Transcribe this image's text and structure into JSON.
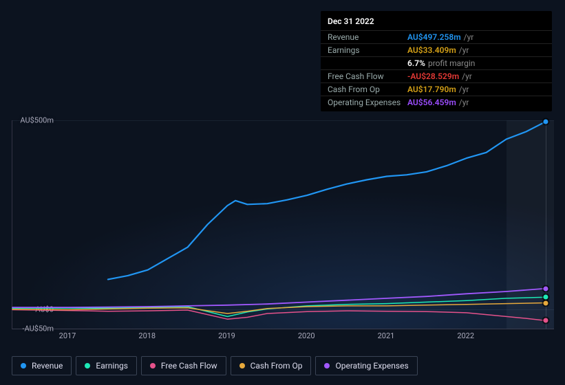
{
  "tooltip": {
    "date": "Dec 31 2022",
    "rows": [
      {
        "label": "Revenue",
        "value": "AU$497.258m",
        "color": "#2196f3",
        "suffix": "/yr"
      },
      {
        "label": "Earnings",
        "value": "AU$33.409m",
        "color": "#d4a017",
        "suffix": "/yr"
      },
      {
        "label": "",
        "value": "6.7%",
        "color": "#ffffff",
        "suffix": "profit margin"
      },
      {
        "label": "Free Cash Flow",
        "value": "-AU$28.529m",
        "color": "#e53935",
        "suffix": "/yr"
      },
      {
        "label": "Cash From Op",
        "value": "AU$17.790m",
        "color": "#d4a017",
        "suffix": "/yr"
      },
      {
        "label": "Operating Expenses",
        "value": "AU$56.459m",
        "color": "#9c4dff",
        "suffix": "/yr"
      }
    ]
  },
  "chart": {
    "type": "line",
    "background_color": "#0c131f",
    "grid_color": "rgba(100,120,150,0.15)",
    "x": {
      "min": 2016.3,
      "max": 2023.1,
      "ticks": [
        2017,
        2018,
        2019,
        2020,
        2021,
        2022
      ],
      "marker_at": 2023.0
    },
    "y": {
      "min": -50,
      "max": 500,
      "ticks": [
        {
          "v": 500,
          "label": "AU$500m"
        },
        {
          "v": 0,
          "label": "AU$0"
        },
        {
          "v": -50,
          "label": "-AU$50m"
        }
      ]
    },
    "future_from": 2022.5,
    "series": [
      {
        "name": "Revenue",
        "color": "#2196f3",
        "width": 2.2,
        "points": [
          [
            2017.5,
            80
          ],
          [
            2017.75,
            90
          ],
          [
            2018.0,
            105
          ],
          [
            2018.25,
            135
          ],
          [
            2018.5,
            165
          ],
          [
            2018.75,
            225
          ],
          [
            2019.0,
            275
          ],
          [
            2019.1,
            288
          ],
          [
            2019.25,
            278
          ],
          [
            2019.5,
            280
          ],
          [
            2019.75,
            290
          ],
          [
            2020.0,
            302
          ],
          [
            2020.25,
            318
          ],
          [
            2020.5,
            332
          ],
          [
            2020.75,
            343
          ],
          [
            2021.0,
            352
          ],
          [
            2021.25,
            356
          ],
          [
            2021.5,
            364
          ],
          [
            2021.75,
            380
          ],
          [
            2022.0,
            400
          ],
          [
            2022.25,
            415
          ],
          [
            2022.5,
            450
          ],
          [
            2022.75,
            470
          ],
          [
            2023.0,
            497
          ]
        ]
      },
      {
        "name": "Earnings",
        "color": "#1de9b6",
        "width": 1.5,
        "points": [
          [
            2016.3,
            4
          ],
          [
            2017.0,
            4
          ],
          [
            2017.5,
            4
          ],
          [
            2018.0,
            6
          ],
          [
            2018.5,
            8
          ],
          [
            2019.0,
            -18
          ],
          [
            2019.25,
            -6
          ],
          [
            2019.5,
            2
          ],
          [
            2020.0,
            10
          ],
          [
            2020.5,
            14
          ],
          [
            2021.0,
            16
          ],
          [
            2021.5,
            20
          ],
          [
            2022.0,
            24
          ],
          [
            2022.5,
            30
          ],
          [
            2023.0,
            33
          ]
        ]
      },
      {
        "name": "Free Cash Flow",
        "color": "#e5528b",
        "width": 1.5,
        "points": [
          [
            2016.3,
            0
          ],
          [
            2017.0,
            -2
          ],
          [
            2017.5,
            -4
          ],
          [
            2018.0,
            -3
          ],
          [
            2018.5,
            -1
          ],
          [
            2019.0,
            -25
          ],
          [
            2019.25,
            -20
          ],
          [
            2019.5,
            -10
          ],
          [
            2020.0,
            -5
          ],
          [
            2020.5,
            -3
          ],
          [
            2021.0,
            -4
          ],
          [
            2021.5,
            -5
          ],
          [
            2022.0,
            -8
          ],
          [
            2022.5,
            -18
          ],
          [
            2022.75,
            -23
          ],
          [
            2023.0,
            -29
          ]
        ]
      },
      {
        "name": "Cash From Op",
        "color": "#e7a93c",
        "width": 1.5,
        "points": [
          [
            2016.3,
            1
          ],
          [
            2017.0,
            0
          ],
          [
            2017.5,
            2
          ],
          [
            2018.0,
            4
          ],
          [
            2018.5,
            5
          ],
          [
            2019.0,
            -10
          ],
          [
            2019.25,
            -4
          ],
          [
            2019.5,
            3
          ],
          [
            2020.0,
            8
          ],
          [
            2020.5,
            10
          ],
          [
            2021.0,
            10
          ],
          [
            2021.5,
            12
          ],
          [
            2022.0,
            14
          ],
          [
            2022.5,
            16
          ],
          [
            2023.0,
            18
          ]
        ]
      },
      {
        "name": "Operating Expenses",
        "color": "#a259ff",
        "width": 1.8,
        "points": [
          [
            2016.3,
            6
          ],
          [
            2017.0,
            6
          ],
          [
            2017.5,
            7
          ],
          [
            2018.0,
            8
          ],
          [
            2018.5,
            10
          ],
          [
            2019.0,
            12
          ],
          [
            2019.5,
            15
          ],
          [
            2020.0,
            20
          ],
          [
            2020.5,
            25
          ],
          [
            2021.0,
            30
          ],
          [
            2021.5,
            35
          ],
          [
            2022.0,
            42
          ],
          [
            2022.5,
            48
          ],
          [
            2023.0,
            56
          ]
        ]
      }
    ]
  },
  "legend": [
    {
      "label": "Revenue",
      "color": "#2196f3"
    },
    {
      "label": "Earnings",
      "color": "#1de9b6"
    },
    {
      "label": "Free Cash Flow",
      "color": "#e5528b"
    },
    {
      "label": "Cash From Op",
      "color": "#e7a93c"
    },
    {
      "label": "Operating Expenses",
      "color": "#a259ff"
    }
  ]
}
